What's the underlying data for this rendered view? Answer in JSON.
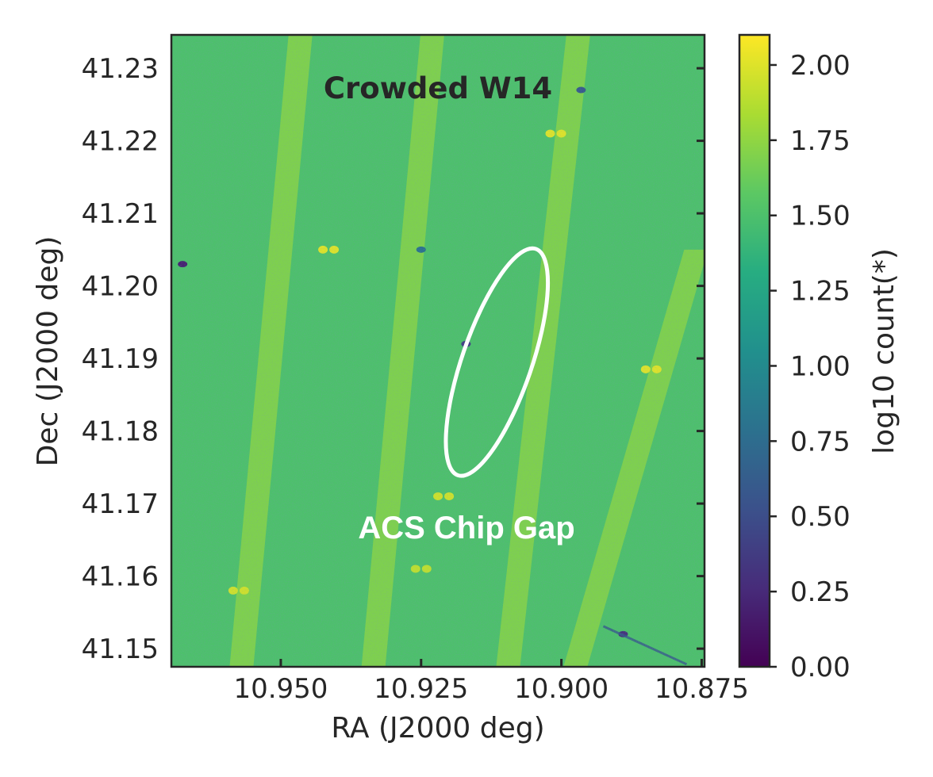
{
  "chart_data": {
    "type": "heatmap",
    "title": "Crowded W14",
    "annotation": "ACS Chip Gap",
    "xlabel": "RA (J2000 deg)",
    "ylabel": "Dec (J2000 deg)",
    "colorbar_label": "log10 count(*)",
    "colormap": "viridis",
    "xlim": [
      10.9695,
      10.8745
    ],
    "ylim": [
      41.1475,
      41.2346
    ],
    "x_ticks": [
      10.95,
      10.925,
      10.9,
      10.875
    ],
    "x_tick_labels": [
      "10.950",
      "10.925",
      "10.900",
      "10.875"
    ],
    "y_ticks": [
      41.15,
      41.16,
      41.17,
      41.18,
      41.19,
      41.2,
      41.21,
      41.22,
      41.23
    ],
    "y_tick_labels": [
      "41.15",
      "41.16",
      "41.17",
      "41.18",
      "41.19",
      "41.20",
      "41.21",
      "41.22",
      "41.23"
    ],
    "colorbar_range": [
      0.0,
      2.1
    ],
    "colorbar_ticks": [
      0.0,
      0.25,
      0.5,
      0.75,
      1.0,
      1.25,
      1.5,
      1.75,
      2.0
    ],
    "colorbar_tick_labels": [
      "0.00",
      "0.25",
      "0.50",
      "0.75",
      "1.00",
      "1.25",
      "1.50",
      "1.75",
      "2.00"
    ],
    "background_level": 1.5,
    "gap_level": 1.72,
    "chip_gaps": [
      {
        "top": [
          10.9465,
          41.2346
        ],
        "bottom": [
          10.957,
          41.1475
        ]
      },
      {
        "top": [
          10.923,
          41.2346
        ],
        "bottom": [
          10.9335,
          41.1475
        ]
      },
      {
        "top": [
          10.897,
          41.2346
        ],
        "bottom": [
          10.9095,
          41.1475
        ]
      },
      {
        "top": [
          10.876,
          41.205
        ],
        "bottom": [
          10.8975,
          41.1475
        ]
      }
    ],
    "overlap_spots": [
      {
        "ra": 10.9415,
        "dec": 41.205,
        "value": 2.0
      },
      {
        "ra": 10.901,
        "dec": 41.221,
        "value": 2.0
      },
      {
        "ra": 10.884,
        "dec": 41.1885,
        "value": 2.0
      },
      {
        "ra": 10.921,
        "dec": 41.171,
        "value": 1.95
      },
      {
        "ra": 10.9575,
        "dec": 41.158,
        "value": 1.95
      },
      {
        "ra": 10.925,
        "dec": 41.161,
        "value": 1.9
      }
    ],
    "low_spots": [
      {
        "ra": 10.9675,
        "dec": 41.203,
        "value": 0.2
      },
      {
        "ra": 10.917,
        "dec": 41.192,
        "value": 0.4
      },
      {
        "ra": 10.889,
        "dec": 41.152,
        "value": 0.3
      },
      {
        "ra": 10.8965,
        "dec": 41.227,
        "value": 0.6
      },
      {
        "ra": 10.925,
        "dec": 41.205,
        "value": 0.8
      }
    ],
    "highlight_ellipse": {
      "ra": 10.9115,
      "dec": 41.1895,
      "semi_ra": 0.0062,
      "semi_dec": 0.0165,
      "angle_deg": 19
    }
  }
}
